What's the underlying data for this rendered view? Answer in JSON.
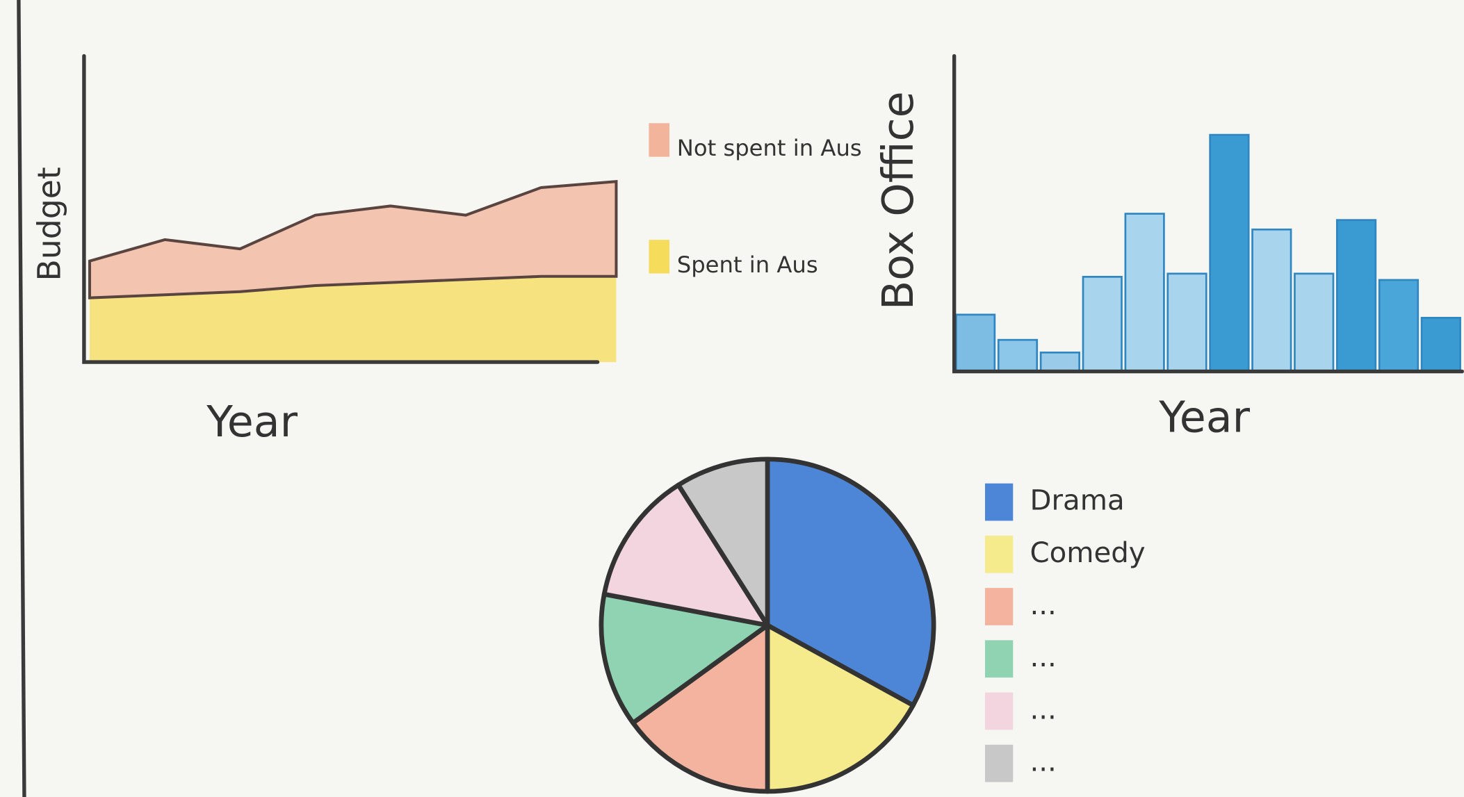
{
  "chart_data": [
    {
      "type": "area",
      "ylabel": "Budget",
      "xlabel": "Year",
      "categories": [
        null,
        null,
        null,
        null,
        null,
        null,
        null,
        null
      ],
      "ylim": [
        0,
        10
      ],
      "series": [
        {
          "name": "Not spent in Aus",
          "color": "#f2b49a",
          "values": [
            1.2,
            1.8,
            1.4,
            2.3,
            2.5,
            2.1,
            2.9,
            3.1
          ]
        },
        {
          "name": "Spent in Aus",
          "color": "#f5dc5a",
          "values": [
            2.1,
            2.2,
            2.3,
            2.5,
            2.6,
            2.7,
            2.8,
            2.8
          ]
        }
      ]
    },
    {
      "type": "bar",
      "ylabel": "Box Office",
      "xlabel": "Year",
      "categories": [
        null,
        null,
        null,
        null,
        null,
        null,
        null,
        null,
        null,
        null,
        null,
        null
      ],
      "ylim": [
        0,
        10
      ],
      "values": [
        1.8,
        1.0,
        0.6,
        3.0,
        5.0,
        3.1,
        7.5,
        4.5,
        3.1,
        4.8,
        2.9,
        1.7
      ],
      "colors": [
        "#7dbde3",
        "#8cc6e8",
        "#9acbe8",
        "#a9d4ee",
        "#a9d4ee",
        "#a9d4ee",
        "#3a9bd2",
        "#a9d4ee",
        "#a9d4ee",
        "#3a9bd2",
        "#4aa5d8",
        "#3a9bd2"
      ]
    },
    {
      "type": "pie",
      "categories": [
        "Drama",
        "Comedy",
        "...",
        "...",
        "...",
        "..."
      ],
      "values": [
        33,
        17,
        15,
        13,
        13,
        9
      ],
      "colors": [
        "#4d86d6",
        "#f5ea8c",
        "#f3b39e",
        "#8fd3b2",
        "#f2d5de",
        "#c8c8c8"
      ]
    }
  ]
}
